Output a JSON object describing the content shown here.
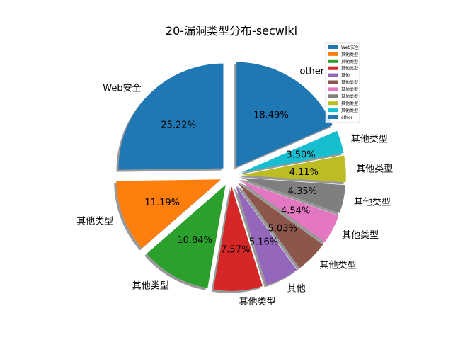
{
  "chart_data": {
    "type": "pie",
    "title": "20-漏洞类型分布-secwiki",
    "start_angle_deg": 90,
    "direction": "counterclockwise",
    "shadow": true,
    "exploded": true,
    "legend_position": "top-right",
    "slices": [
      {
        "label": "Web安全",
        "value": 25.22,
        "pct_label": "25.22%",
        "color": "#1f77b4"
      },
      {
        "label": "其他类型",
        "value": 11.19,
        "pct_label": "11.19%",
        "color": "#ff7f0e"
      },
      {
        "label": "其他类型",
        "value": 10.84,
        "pct_label": "10.84%",
        "color": "#2ca02c"
      },
      {
        "label": "其他类型",
        "value": 7.57,
        "pct_label": "7.57%",
        "color": "#d62728"
      },
      {
        "label": "其他",
        "value": 5.16,
        "pct_label": "5.16%",
        "color": "#9467bd"
      },
      {
        "label": "其他类型",
        "value": 5.03,
        "pct_label": "5.03%",
        "color": "#8c564b"
      },
      {
        "label": "其他类型",
        "value": 4.54,
        "pct_label": "4.54%",
        "color": "#e377c2"
      },
      {
        "label": "其他类型",
        "value": 4.35,
        "pct_label": "4.35%",
        "color": "#7f7f7f"
      },
      {
        "label": "其他类型",
        "value": 4.11,
        "pct_label": "4.11%",
        "color": "#bcbd22"
      },
      {
        "label": "其他类型",
        "value": 3.5,
        "pct_label": "3.50%",
        "color": "#17becf"
      },
      {
        "label": "other",
        "value": 18.49,
        "pct_label": "18.49%",
        "color": "#1f77b4"
      }
    ]
  }
}
